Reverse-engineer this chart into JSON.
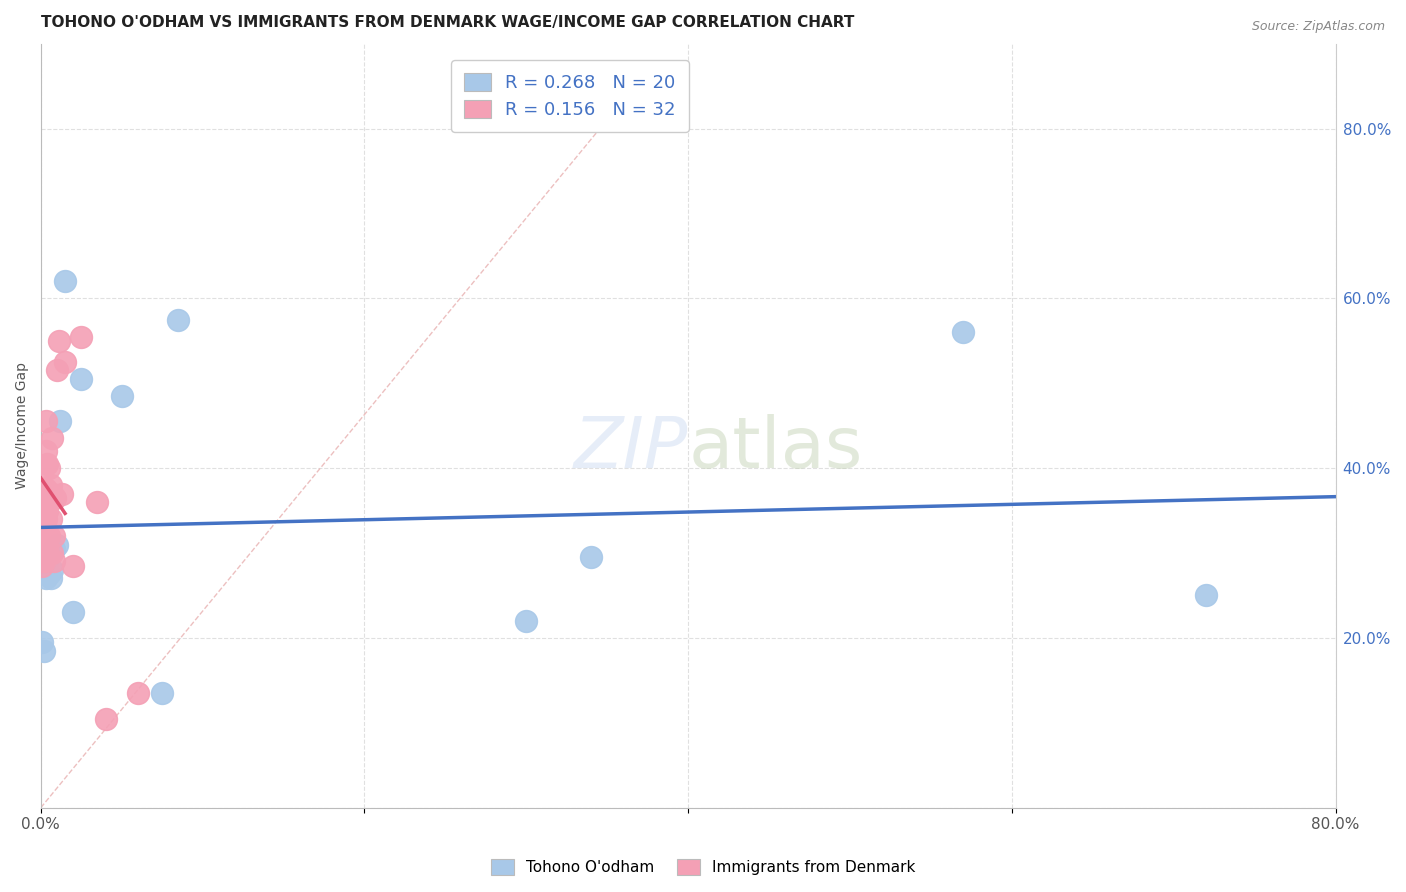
{
  "title": "TOHONO O'ODHAM VS IMMIGRANTS FROM DENMARK WAGE/INCOME GAP CORRELATION CHART",
  "source": "Source: ZipAtlas.com",
  "ylabel": "Wage/Income Gap",
  "background_color": "#ffffff",
  "watermark": "ZIPatlas",
  "blue_series": {
    "label": "Tohono O'odham",
    "R": 0.268,
    "N": 20,
    "color": "#a8c8e8",
    "line_color": "#4472c4",
    "x": [
      0.001,
      0.002,
      0.003,
      0.004,
      0.005,
      0.006,
      0.007,
      0.008,
      0.01,
      0.012,
      0.015,
      0.02,
      0.025,
      0.05,
      0.075,
      0.085,
      0.3,
      0.34,
      0.57,
      0.72
    ],
    "y": [
      0.195,
      0.185,
      0.27,
      0.285,
      0.275,
      0.27,
      0.28,
      0.305,
      0.31,
      0.455,
      0.62,
      0.23,
      0.505,
      0.485,
      0.135,
      0.575,
      0.22,
      0.295,
      0.56,
      0.25
    ]
  },
  "pink_series": {
    "label": "Immigrants from Denmark",
    "R": 0.156,
    "N": 32,
    "color": "#f4a0b5",
    "line_color": "#e05070",
    "x": [
      0.001,
      0.001,
      0.001,
      0.002,
      0.002,
      0.002,
      0.003,
      0.003,
      0.003,
      0.003,
      0.004,
      0.004,
      0.004,
      0.005,
      0.005,
      0.006,
      0.006,
      0.007,
      0.007,
      0.007,
      0.008,
      0.008,
      0.009,
      0.01,
      0.011,
      0.013,
      0.015,
      0.02,
      0.025,
      0.035,
      0.04,
      0.06
    ],
    "y": [
      0.285,
      0.315,
      0.33,
      0.29,
      0.35,
      0.37,
      0.34,
      0.375,
      0.42,
      0.455,
      0.405,
      0.35,
      0.305,
      0.32,
      0.4,
      0.38,
      0.34,
      0.3,
      0.37,
      0.435,
      0.29,
      0.32,
      0.365,
      0.515,
      0.55,
      0.37,
      0.525,
      0.285,
      0.555,
      0.36,
      0.105,
      0.135
    ]
  },
  "xlim": [
    0,
    0.8
  ],
  "ylim": [
    0,
    0.9
  ],
  "yticks": [
    0.0,
    0.2,
    0.4,
    0.6,
    0.8
  ],
  "ytick_labels": [
    "",
    "20.0%",
    "40.0%",
    "60.0%",
    "80.0%"
  ],
  "xticks": [
    0.0,
    0.2,
    0.4,
    0.6,
    0.8
  ],
  "xtick_labels": [
    "0.0%",
    "",
    "",
    "",
    "80.0%"
  ],
  "grid_color": "#e0e0e0",
  "diagonal_line_color": "#ddbbbb",
  "title_fontsize": 11,
  "axis_fontsize": 10,
  "legend_fontsize": 13,
  "tick_fontsize": 11,
  "right_tick_color": "#4472c4"
}
